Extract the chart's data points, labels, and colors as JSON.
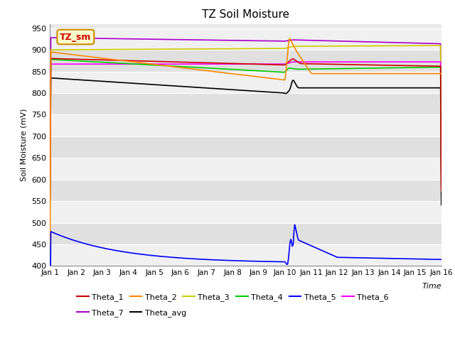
{
  "title": "TZ Soil Moisture",
  "ylabel": "Soil Moisture (mV)",
  "xlabel": "Time",
  "ylim": [
    400,
    960
  ],
  "yticks": [
    400,
    450,
    500,
    550,
    600,
    650,
    700,
    750,
    800,
    850,
    900,
    950
  ],
  "x_labels": [
    "Jan 1",
    "Jan 2",
    "Jan 3",
    "Jan 4",
    "Jan 5",
    "Jan 6",
    "Jan 7",
    "Jan 8",
    "Jan 9",
    "Jan 10",
    "Jan 11",
    "Jan 12",
    "Jan 13",
    "Jan 14",
    "Jan 15",
    "Jan 16"
  ],
  "n_points": 500,
  "colors": {
    "Theta_1": "#cc0000",
    "Theta_2": "#ff8800",
    "Theta_3": "#cccc00",
    "Theta_4": "#00cc00",
    "Theta_5": "#0000ff",
    "Theta_6": "#ff00ff",
    "Theta_7": "#aa00cc",
    "Theta_avg": "#000000"
  },
  "legend_label": "TZ_sm",
  "legend_bbox_facecolor": "#ffffcc",
  "legend_bbox_edgecolor": "#cc8800",
  "legend_text_color": "#cc0000",
  "plot_bgcolor": "#e8e8e8",
  "band_light": "#f0f0f0",
  "band_dark": "#e0e0e0",
  "grid_color": "#ffffff",
  "title_fontsize": 11,
  "tick_fontsize": 8,
  "label_fontsize": 8,
  "legend_fontsize": 8
}
